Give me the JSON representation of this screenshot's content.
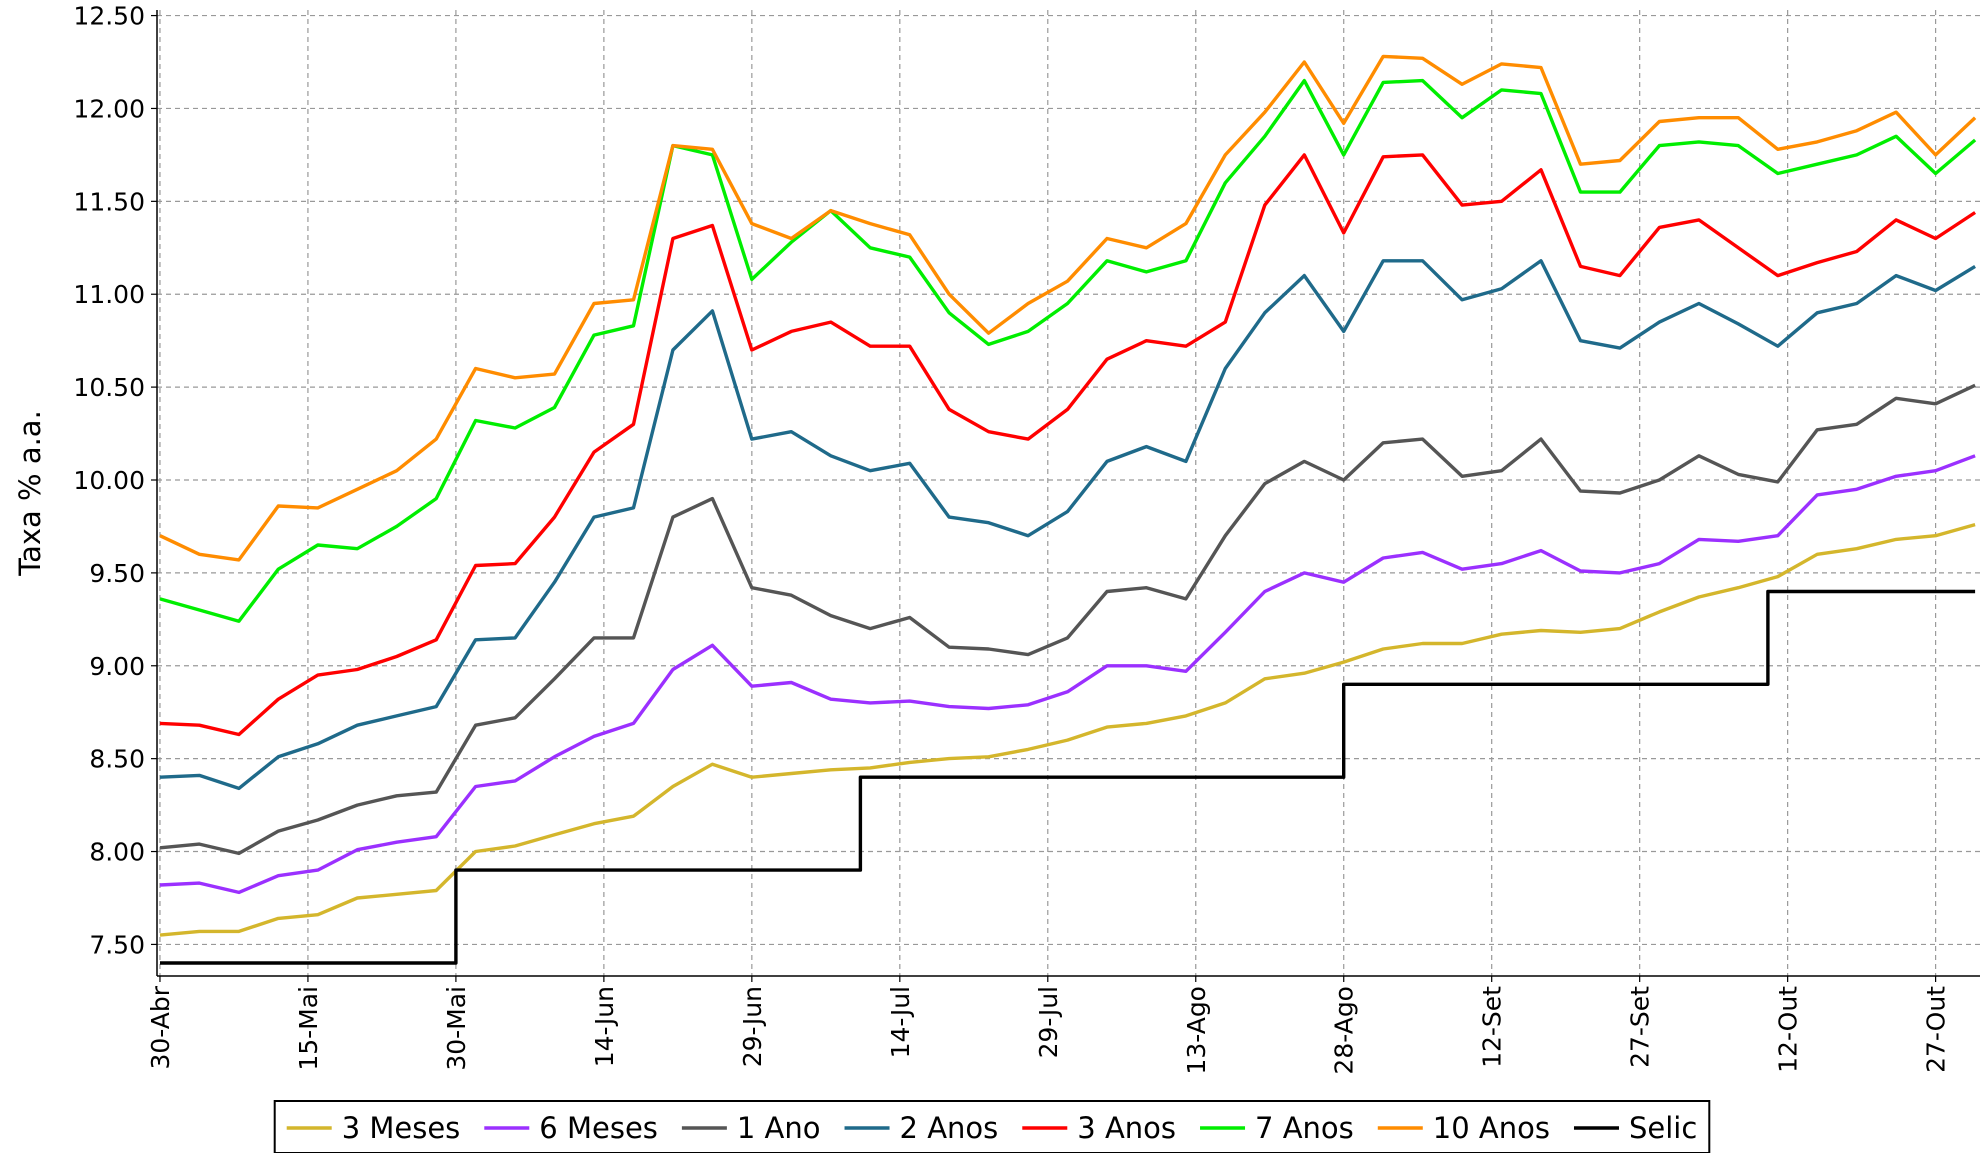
{
  "chart_data": {
    "type": "line",
    "ylabel": "Taxa % a.a.",
    "grid": true,
    "legend": "bottom",
    "xlim": [
      -0.3,
      184.5
    ],
    "ylim": [
      7.33,
      12.53
    ],
    "xticks": [
      {
        "value": 0,
        "label": "30-Abr"
      },
      {
        "value": 15,
        "label": "15-Mai"
      },
      {
        "value": 30,
        "label": "30-Mai"
      },
      {
        "value": 45,
        "label": "14-Jun"
      },
      {
        "value": 60,
        "label": "29-Jun"
      },
      {
        "value": 75,
        "label": "14-Jul"
      },
      {
        "value": 90,
        "label": "29-Jul"
      },
      {
        "value": 105,
        "label": "13-Ago"
      },
      {
        "value": 120,
        "label": "28-Ago"
      },
      {
        "value": 135,
        "label": "12-Set"
      },
      {
        "value": 150,
        "label": "27-Set"
      },
      {
        "value": 165,
        "label": "12-Out"
      },
      {
        "value": 180,
        "label": "27-Out"
      }
    ],
    "yticks": [
      {
        "value": 7.5,
        "label": "7.50"
      },
      {
        "value": 8,
        "label": "8.00"
      },
      {
        "value": 8.5,
        "label": "8.50"
      },
      {
        "value": 9,
        "label": "9.00"
      },
      {
        "value": 9.5,
        "label": "9.50"
      },
      {
        "value": 10,
        "label": "10.00"
      },
      {
        "value": 10.5,
        "label": "10.50"
      },
      {
        "value": 11,
        "label": "11.00"
      },
      {
        "value": 11.5,
        "label": "11.50"
      },
      {
        "value": 12,
        "label": "12.00"
      },
      {
        "value": 12.5,
        "label": "12.50"
      }
    ],
    "x": [
      0,
      4,
      8,
      12,
      16,
      20,
      24,
      28,
      32,
      36,
      40,
      44,
      48,
      52,
      56,
      60,
      64,
      68,
      72,
      76,
      80,
      84,
      88,
      92,
      96,
      100,
      104,
      108,
      112,
      116,
      120,
      124,
      128,
      132,
      136,
      140,
      144,
      148,
      152,
      156,
      160,
      164,
      168,
      172,
      176,
      180,
      184
    ],
    "series": [
      {
        "name": "3 Meses",
        "color": "#d4b62c",
        "values": [
          7.55,
          7.57,
          7.57,
          7.64,
          7.66,
          7.75,
          7.77,
          7.79,
          8.0,
          8.03,
          8.09,
          8.15,
          8.19,
          8.35,
          8.47,
          8.4,
          8.42,
          8.44,
          8.45,
          8.48,
          8.5,
          8.51,
          8.55,
          8.6,
          8.67,
          8.69,
          8.73,
          8.8,
          8.93,
          8.96,
          9.02,
          9.09,
          9.12,
          9.12,
          9.17,
          9.19,
          9.18,
          9.2,
          9.29,
          9.37,
          9.42,
          9.48,
          9.6,
          9.63,
          9.68,
          9.7,
          9.76
        ]
      },
      {
        "name": "6 Meses",
        "color": "#9b30ff",
        "values": [
          7.82,
          7.83,
          7.78,
          7.87,
          7.9,
          8.01,
          8.05,
          8.08,
          8.35,
          8.38,
          8.51,
          8.62,
          8.69,
          8.98,
          9.11,
          8.89,
          8.91,
          8.82,
          8.8,
          8.81,
          8.78,
          8.77,
          8.79,
          8.86,
          9.0,
          9.0,
          8.97,
          9.18,
          9.4,
          9.5,
          9.45,
          9.58,
          9.61,
          9.52,
          9.55,
          9.62,
          9.51,
          9.5,
          9.55,
          9.68,
          9.67,
          9.7,
          9.92,
          9.95,
          10.02,
          10.05,
          10.13
        ]
      },
      {
        "name": "1 Ano",
        "color": "#555555",
        "values": [
          8.02,
          8.04,
          7.99,
          8.11,
          8.17,
          8.25,
          8.3,
          8.32,
          8.68,
          8.72,
          8.93,
          9.15,
          9.15,
          9.8,
          9.9,
          9.42,
          9.38,
          9.27,
          9.2,
          9.26,
          9.1,
          9.09,
          9.06,
          9.15,
          9.4,
          9.42,
          9.36,
          9.7,
          9.98,
          10.1,
          10.0,
          10.2,
          10.22,
          10.02,
          10.05,
          10.22,
          9.94,
          9.93,
          10.0,
          10.13,
          10.03,
          9.99,
          10.27,
          10.3,
          10.44,
          10.41,
          10.51
        ]
      },
      {
        "name": "2 Anos",
        "color": "#1f6a8a",
        "values": [
          8.4,
          8.41,
          8.34,
          8.51,
          8.58,
          8.68,
          8.73,
          8.78,
          9.14,
          9.15,
          9.45,
          9.8,
          9.85,
          10.7,
          10.91,
          10.22,
          10.26,
          10.13,
          10.05,
          10.09,
          9.8,
          9.77,
          9.7,
          9.83,
          10.1,
          10.18,
          10.1,
          10.6,
          10.9,
          11.1,
          10.8,
          11.18,
          11.18,
          10.97,
          11.03,
          11.18,
          10.75,
          10.71,
          10.85,
          10.95,
          10.84,
          10.72,
          10.9,
          10.95,
          11.1,
          11.02,
          11.15
        ]
      },
      {
        "name": "3 Anos",
        "color": "#ff0000",
        "values": [
          8.69,
          8.68,
          8.63,
          8.82,
          8.95,
          8.98,
          9.05,
          9.14,
          9.54,
          9.55,
          9.8,
          10.15,
          10.3,
          11.3,
          11.37,
          10.7,
          10.8,
          10.85,
          10.72,
          10.72,
          10.38,
          10.26,
          10.22,
          10.38,
          10.65,
          10.75,
          10.72,
          10.85,
          11.48,
          11.75,
          11.33,
          11.74,
          11.75,
          11.48,
          11.5,
          11.67,
          11.15,
          11.1,
          11.36,
          11.4,
          11.25,
          11.1,
          11.17,
          11.23,
          11.4,
          11.3,
          11.44
        ]
      },
      {
        "name": "7 Anos",
        "color": "#00ee00",
        "values": [
          9.36,
          9.3,
          9.24,
          9.52,
          9.65,
          9.63,
          9.75,
          9.9,
          10.32,
          10.28,
          10.39,
          10.78,
          10.83,
          11.8,
          11.75,
          11.08,
          11.28,
          11.45,
          11.25,
          11.2,
          10.9,
          10.73,
          10.8,
          10.95,
          11.18,
          11.12,
          11.18,
          11.6,
          11.85,
          12.15,
          11.75,
          12.14,
          12.15,
          11.95,
          12.1,
          12.08,
          11.55,
          11.55,
          11.8,
          11.82,
          11.8,
          11.65,
          11.7,
          11.75,
          11.85,
          11.65,
          11.83
        ]
      },
      {
        "name": "10 Anos",
        "color": "#ff8c00",
        "values": [
          9.7,
          9.6,
          9.57,
          9.86,
          9.85,
          9.95,
          10.05,
          10.22,
          10.6,
          10.55,
          10.57,
          10.95,
          10.97,
          11.8,
          11.78,
          11.38,
          11.3,
          11.45,
          11.38,
          11.32,
          11.0,
          10.79,
          10.95,
          11.07,
          11.3,
          11.25,
          11.38,
          11.75,
          11.98,
          12.25,
          11.92,
          12.28,
          12.27,
          12.13,
          12.24,
          12.22,
          11.7,
          11.72,
          11.93,
          11.95,
          11.95,
          11.78,
          11.82,
          11.88,
          11.98,
          11.75,
          11.95
        ]
      },
      {
        "name": "Selic",
        "color": "#000000",
        "x": [
          0,
          30,
          30,
          71,
          71,
          120,
          120,
          163,
          163,
          184
        ],
        "values": [
          7.4,
          7.4,
          7.9,
          7.9,
          8.4,
          8.4,
          8.9,
          8.9,
          9.4,
          9.4
        ]
      }
    ]
  }
}
